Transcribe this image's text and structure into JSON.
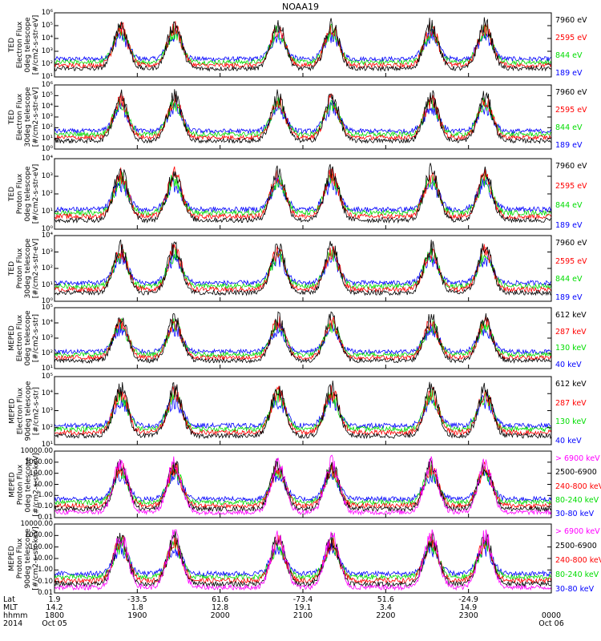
{
  "title": "NOAA19",
  "colors": {
    "black": "#000000",
    "red": "#ff0000",
    "green": "#00dd00",
    "blue": "#0000ff",
    "magenta": "#ff00ff"
  },
  "chart_data": {
    "type": "line",
    "panels": [
      {
        "id": "ted-e-0",
        "ylabel": [
          "TED",
          "Electron Flux",
          "0deg telescope",
          "[#/cm2-s-str-eV]"
        ],
        "yscale": "log",
        "ylim_exp": [
          1,
          6
        ],
        "tick_labels": [
          "10¹",
          "10²",
          "10³",
          "10⁴",
          "10⁵",
          "10⁶"
        ],
        "legend": [
          {
            "text": "7960 eV",
            "color": "black"
          },
          {
            "text": "2595 eV",
            "color": "red"
          },
          {
            "text": "844 eV",
            "color": "green"
          },
          {
            "text": "189 eV",
            "color": "blue"
          }
        ]
      },
      {
        "id": "ted-e-30",
        "ylabel": [
          "TED",
          "Electron Flux",
          "30deg telescope",
          "[#/cm2-s-str-eV]"
        ],
        "yscale": "log",
        "ylim_exp": [
          0,
          6
        ],
        "tick_labels": [
          "10⁰",
          "10¹",
          "10²",
          "10³",
          "10⁴",
          "10⁵",
          "10⁶"
        ],
        "legend": [
          {
            "text": "7960 eV",
            "color": "black"
          },
          {
            "text": "2595 eV",
            "color": "red"
          },
          {
            "text": "844 eV",
            "color": "green"
          },
          {
            "text": "189 eV",
            "color": "blue"
          }
        ]
      },
      {
        "id": "ted-p-0",
        "ylabel": [
          "TED",
          "Proton Flux",
          "0deg telescope",
          "[#/cm2-s-str-eV]"
        ],
        "yscale": "log",
        "ylim_exp": [
          0,
          4
        ],
        "tick_labels": [
          "10⁰",
          "10¹",
          "10²",
          "10³",
          "10⁴"
        ],
        "legend": [
          {
            "text": "7960 eV",
            "color": "black"
          },
          {
            "text": "2595 eV",
            "color": "red"
          },
          {
            "text": "844 eV",
            "color": "green"
          },
          {
            "text": "189 eV",
            "color": "blue"
          }
        ]
      },
      {
        "id": "ted-p-30",
        "ylabel": [
          "TED",
          "Proton Flux",
          "30deg telescope",
          "[#/cm2-s-str-eV]"
        ],
        "yscale": "log",
        "ylim_exp": [
          0,
          4
        ],
        "tick_labels": [
          "10⁰",
          "10¹",
          "10²",
          "10³",
          "10⁴"
        ],
        "legend": [
          {
            "text": "7960 eV",
            "color": "black"
          },
          {
            "text": "2595 eV",
            "color": "red"
          },
          {
            "text": "844 eV",
            "color": "green"
          },
          {
            "text": "189 eV",
            "color": "blue"
          }
        ]
      },
      {
        "id": "meped-e-0",
        "ylabel": [
          "MEPED",
          "Electron Flux",
          "0deg telescope",
          "[#/cm2-s-str]"
        ],
        "yscale": "log",
        "ylim_exp": [
          1,
          5
        ],
        "tick_labels": [
          "10¹",
          "10²",
          "10³",
          "10⁴",
          "10⁵"
        ],
        "legend": [
          {
            "text": "612 keV",
            "color": "black"
          },
          {
            "text": "287 keV",
            "color": "red"
          },
          {
            "text": "130 keV",
            "color": "green"
          },
          {
            "text": "40 keV",
            "color": "blue"
          }
        ]
      },
      {
        "id": "meped-e-90",
        "ylabel": [
          "MEPED",
          "Electron Flux",
          "90deg telescope",
          "[#/cm2-s-str]"
        ],
        "yscale": "log",
        "ylim_exp": [
          1,
          5
        ],
        "tick_labels": [
          "10¹",
          "10²",
          "10³",
          "10⁴",
          "10⁵"
        ],
        "legend": [
          {
            "text": "612 keV",
            "color": "black"
          },
          {
            "text": "287 keV",
            "color": "red"
          },
          {
            "text": "130 keV",
            "color": "green"
          },
          {
            "text": "40 keV",
            "color": "blue"
          }
        ]
      },
      {
        "id": "meped-p-0",
        "ylabel": [
          "MEPED",
          "Proton Flux",
          "0deg telescope",
          "[#/cm2-s-str-keV]"
        ],
        "yscale": "log",
        "ylim_exp": [
          -2,
          4
        ],
        "tick_labels": [
          "0.01",
          "0.10",
          "1.00",
          "10.00",
          "100.00",
          "1000.00",
          "10000.00"
        ],
        "legend": [
          {
            "text": "> 6900 keV",
            "color": "magenta"
          },
          {
            "text": "2500-6900",
            "color": "black"
          },
          {
            "text": "240-800 keV",
            "color": "red"
          },
          {
            "text": "80-240 keV",
            "color": "green"
          },
          {
            "text": "30-80 keV",
            "color": "blue"
          }
        ]
      },
      {
        "id": "meped-p-90",
        "ylabel": [
          "MEPED",
          "Proton Flux",
          "90deg telescope",
          "[#/cm2-s-str-keV]"
        ],
        "yscale": "log",
        "ylim_exp": [
          -2,
          4
        ],
        "tick_labels": [
          "0.01",
          "0.10",
          "1.00",
          "10.00",
          "100.00",
          "1000.00",
          "10000.00"
        ],
        "legend": [
          {
            "text": "> 6900 keV",
            "color": "magenta"
          },
          {
            "text": "2500-6900",
            "color": "black"
          },
          {
            "text": "240-800 keV",
            "color": "red"
          },
          {
            "text": "80-240 keV",
            "color": "green"
          },
          {
            "text": "30-80 keV",
            "color": "blue"
          }
        ]
      }
    ],
    "x_axis": {
      "unit": "hours since 18:00 UT, Oct 05 2014",
      "range_hours": [
        0,
        6
      ],
      "passes_center_hours": [
        0.8,
        1.45,
        2.7,
        3.35,
        4.55,
        5.2
      ],
      "row_labels": [
        "Lat",
        "MLT",
        "hhmm",
        "2014"
      ],
      "columns": [
        {
          "hour": 0,
          "lat": "1.9",
          "mlt": "14.2",
          "hhmm": "1800",
          "date": "Oct 05"
        },
        {
          "hour": 1,
          "lat": "-33.5",
          "mlt": "1.8",
          "hhmm": "1900",
          "date": ""
        },
        {
          "hour": 2,
          "lat": "61.6",
          "mlt": "12.8",
          "hhmm": "2000",
          "date": ""
        },
        {
          "hour": 3,
          "lat": "-73.4",
          "mlt": "19.1",
          "hhmm": "2100",
          "date": ""
        },
        {
          "hour": 4,
          "lat": "51.6",
          "mlt": "3.4",
          "hhmm": "2200",
          "date": ""
        },
        {
          "hour": 5,
          "lat": "-24.9",
          "mlt": "14.9",
          "hhmm": "2300",
          "date": ""
        },
        {
          "hour": 6,
          "lat": "",
          "mlt": "",
          "hhmm": "0000",
          "date": "Oct 06"
        }
      ]
    }
  }
}
